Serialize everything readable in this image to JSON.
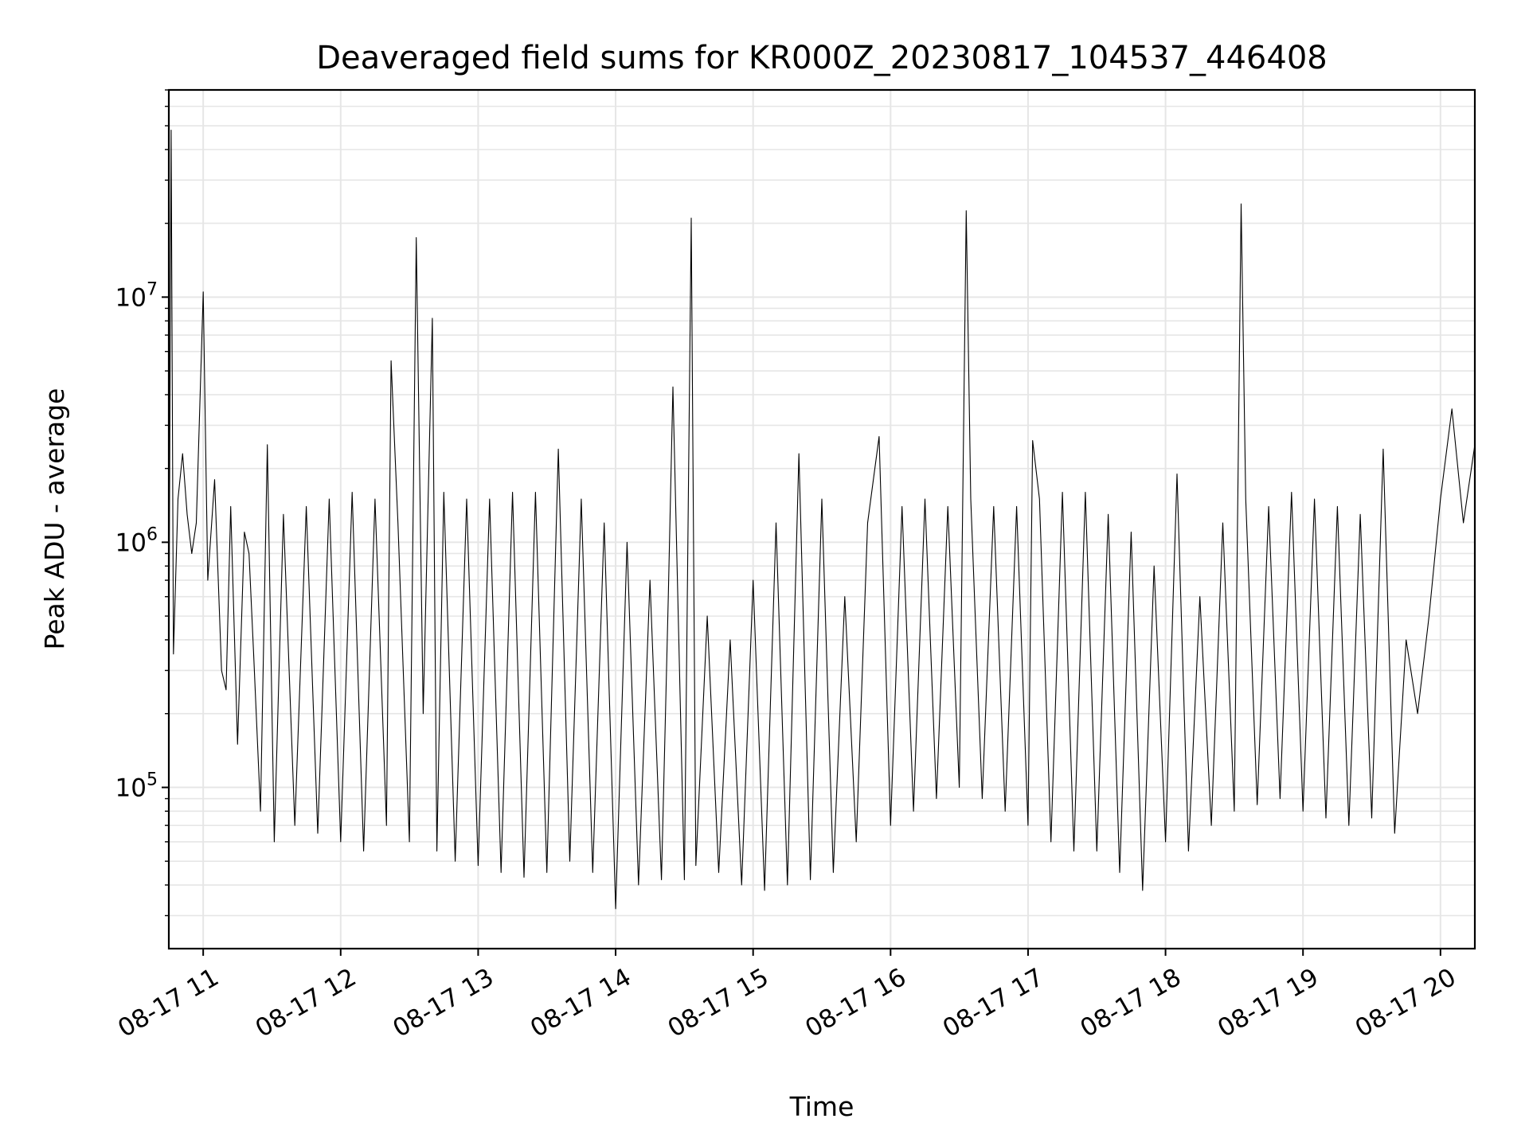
{
  "chart_data": {
    "type": "line",
    "title": "Deaveraged field sums for KR000Z_20230817_104537_446408",
    "xlabel": "Time",
    "ylabel": "Peak ADU - average",
    "x_range": [
      "2023-08-17 10:45",
      "2023-08-17 20:15"
    ],
    "ylim": [
      22000,
      70000000
    ],
    "yscale": "log",
    "grid": true,
    "line_color": "#000000",
    "x_ticks": [
      {
        "value": "2023-08-17 11:00",
        "label": "08-17 11"
      },
      {
        "value": "2023-08-17 12:00",
        "label": "08-17 12"
      },
      {
        "value": "2023-08-17 13:00",
        "label": "08-17 13"
      },
      {
        "value": "2023-08-17 14:00",
        "label": "08-17 14"
      },
      {
        "value": "2023-08-17 15:00",
        "label": "08-17 15"
      },
      {
        "value": "2023-08-17 16:00",
        "label": "08-17 16"
      },
      {
        "value": "2023-08-17 17:00",
        "label": "08-17 17"
      },
      {
        "value": "2023-08-17 18:00",
        "label": "08-17 18"
      },
      {
        "value": "2023-08-17 19:00",
        "label": "08-17 19"
      },
      {
        "value": "2023-08-17 20:00",
        "label": "08-17 20"
      }
    ],
    "y_ticks": [
      {
        "value": 100000,
        "base": "10",
        "exp": "5"
      },
      {
        "value": 1000000,
        "base": "10",
        "exp": "6"
      },
      {
        "value": 10000000,
        "base": "10",
        "exp": "7"
      }
    ],
    "series": [
      {
        "x": [
          "2023-08-17 10:45",
          "2023-08-17 10:46",
          "2023-08-17 10:47",
          "2023-08-17 10:49",
          "2023-08-17 10:51",
          "2023-08-17 10:53",
          "2023-08-17 10:55",
          "2023-08-17 10:57",
          "2023-08-17 11:00",
          "2023-08-17 11:02",
          "2023-08-17 11:05",
          "2023-08-17 11:08",
          "2023-08-17 11:10",
          "2023-08-17 11:12",
          "2023-08-17 11:15",
          "2023-08-17 11:18",
          "2023-08-17 11:20",
          "2023-08-17 11:22",
          "2023-08-17 11:25",
          "2023-08-17 11:28",
          "2023-08-17 11:31",
          "2023-08-17 11:35",
          "2023-08-17 11:40",
          "2023-08-17 11:45",
          "2023-08-17 11:50",
          "2023-08-17 11:55",
          "2023-08-17 12:00",
          "2023-08-17 12:05",
          "2023-08-17 12:10",
          "2023-08-17 12:15",
          "2023-08-17 12:20",
          "2023-08-17 12:22",
          "2023-08-17 12:25",
          "2023-08-17 12:30",
          "2023-08-17 12:33",
          "2023-08-17 12:36",
          "2023-08-17 12:40",
          "2023-08-17 12:42",
          "2023-08-17 12:45",
          "2023-08-17 12:50",
          "2023-08-17 12:55",
          "2023-08-17 13:00",
          "2023-08-17 13:05",
          "2023-08-17 13:10",
          "2023-08-17 13:15",
          "2023-08-17 13:20",
          "2023-08-17 13:25",
          "2023-08-17 13:30",
          "2023-08-17 13:35",
          "2023-08-17 13:40",
          "2023-08-17 13:45",
          "2023-08-17 13:50",
          "2023-08-17 13:55",
          "2023-08-17 14:00",
          "2023-08-17 14:05",
          "2023-08-17 14:10",
          "2023-08-17 14:15",
          "2023-08-17 14:20",
          "2023-08-17 14:23",
          "2023-08-17 14:25",
          "2023-08-17 14:30",
          "2023-08-17 14:33",
          "2023-08-17 14:35",
          "2023-08-17 14:40",
          "2023-08-17 14:45",
          "2023-08-17 14:50",
          "2023-08-17 14:55",
          "2023-08-17 15:00",
          "2023-08-17 15:05",
          "2023-08-17 15:10",
          "2023-08-17 15:15",
          "2023-08-17 15:20",
          "2023-08-17 15:25",
          "2023-08-17 15:30",
          "2023-08-17 15:35",
          "2023-08-17 15:40",
          "2023-08-17 15:45",
          "2023-08-17 15:50",
          "2023-08-17 15:55",
          "2023-08-17 16:00",
          "2023-08-17 16:05",
          "2023-08-17 16:10",
          "2023-08-17 16:15",
          "2023-08-17 16:20",
          "2023-08-17 16:25",
          "2023-08-17 16:30",
          "2023-08-17 16:33",
          "2023-08-17 16:35",
          "2023-08-17 16:40",
          "2023-08-17 16:45",
          "2023-08-17 16:50",
          "2023-08-17 16:55",
          "2023-08-17 17:00",
          "2023-08-17 17:02",
          "2023-08-17 17:05",
          "2023-08-17 17:10",
          "2023-08-17 17:15",
          "2023-08-17 17:20",
          "2023-08-17 17:25",
          "2023-08-17 17:30",
          "2023-08-17 17:35",
          "2023-08-17 17:40",
          "2023-08-17 17:45",
          "2023-08-17 17:50",
          "2023-08-17 17:55",
          "2023-08-17 18:00",
          "2023-08-17 18:05",
          "2023-08-17 18:10",
          "2023-08-17 18:15",
          "2023-08-17 18:20",
          "2023-08-17 18:25",
          "2023-08-17 18:30",
          "2023-08-17 18:33",
          "2023-08-17 18:35",
          "2023-08-17 18:40",
          "2023-08-17 18:45",
          "2023-08-17 18:50",
          "2023-08-17 18:55",
          "2023-08-17 19:00",
          "2023-08-17 19:05",
          "2023-08-17 19:10",
          "2023-08-17 19:15",
          "2023-08-17 19:20",
          "2023-08-17 19:25",
          "2023-08-17 19:30",
          "2023-08-17 19:35",
          "2023-08-17 19:40",
          "2023-08-17 19:45",
          "2023-08-17 19:50",
          "2023-08-17 19:55",
          "2023-08-17 20:00",
          "2023-08-17 20:05",
          "2023-08-17 20:10",
          "2023-08-17 20:15"
        ],
        "values": [
          300000,
          48000000,
          350000,
          1500000,
          2300000,
          1300000,
          900000,
          1200000,
          10500000,
          700000,
          1800000,
          300000,
          250000,
          1400000,
          150000,
          1100000,
          900000,
          350000,
          80000,
          2500000,
          60000,
          1300000,
          70000,
          1400000,
          65000,
          1500000,
          60000,
          1600000,
          55000,
          1500000,
          70000,
          5500000,
          1200000,
          60000,
          17500000,
          200000,
          8200000,
          55000,
          1600000,
          50000,
          1500000,
          48000,
          1500000,
          45000,
          1600000,
          43000,
          1600000,
          45000,
          2400000,
          50000,
          1500000,
          45000,
          1200000,
          32000,
          1000000,
          40000,
          700000,
          42000,
          600000,
          4300000,
          42000,
          21000000,
          48000,
          500000,
          45000,
          400000,
          40000,
          700000,
          38000,
          1200000,
          40000,
          2300000,
          42000,
          1500000,
          45000,
          600000,
          60000,
          1200000,
          2700000,
          70000,
          1400000,
          80000,
          1500000,
          90000,
          1400000,
          100000,
          22500000,
          1500000,
          90000,
          1400000,
          80000,
          1400000,
          70000,
          2600000,
          1500000,
          60000,
          1600000,
          55000,
          1600000,
          55000,
          1300000,
          45000,
          1100000,
          38000,
          800000,
          60000,
          1900000,
          55000,
          600000,
          70000,
          1200000,
          80000,
          24000000,
          1500000,
          85000,
          1400000,
          90000,
          1600000,
          80000,
          1500000,
          75000,
          1400000,
          70000,
          1300000,
          75000,
          2400000,
          65000,
          400000,
          200000,
          500000,
          1500000,
          3500000,
          1200000,
          2500000
        ]
      }
    ]
  }
}
